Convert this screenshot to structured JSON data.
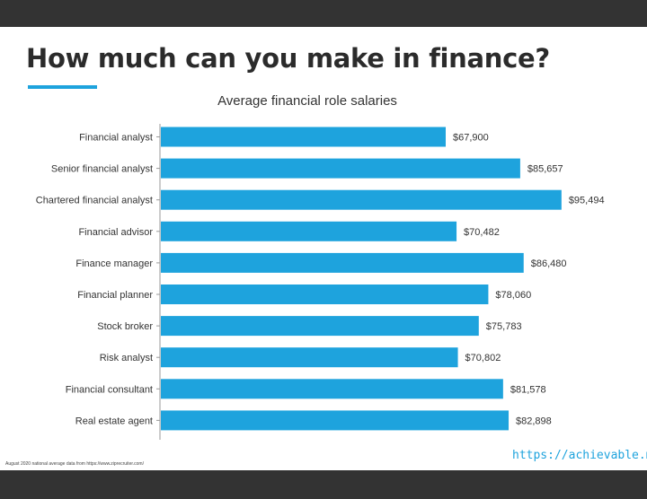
{
  "headline": "How much can you make in finance?",
  "source_note": "August 2020 national average data from https://www.ziprecruiter.com/",
  "brand_link": "https://achievable.me",
  "colors": {
    "bar": "#1ea3dd",
    "accent": "#1ea3dd",
    "frame": "#333333"
  },
  "chart_data": {
    "type": "bar",
    "orientation": "horizontal",
    "title": "Average financial role salaries",
    "xlabel": "",
    "ylabel": "",
    "grid": false,
    "xlim": [
      0,
      100000
    ],
    "categories": [
      "Financial analyst",
      "Senior financial analyst",
      "Chartered financial analyst",
      "Financial advisor",
      "Finance manager",
      "Financial planner",
      "Stock broker",
      "Risk analyst",
      "Financial consultant",
      "Real estate agent"
    ],
    "values": [
      67900,
      85657,
      95494,
      70482,
      86480,
      78060,
      75783,
      70802,
      81578,
      82898
    ],
    "value_labels": [
      "$67,900",
      "$85,657",
      "$95,494",
      "$70,482",
      "$86,480",
      "$78,060",
      "$75,783",
      "$70,802",
      "$81,578",
      "$82,898"
    ]
  }
}
